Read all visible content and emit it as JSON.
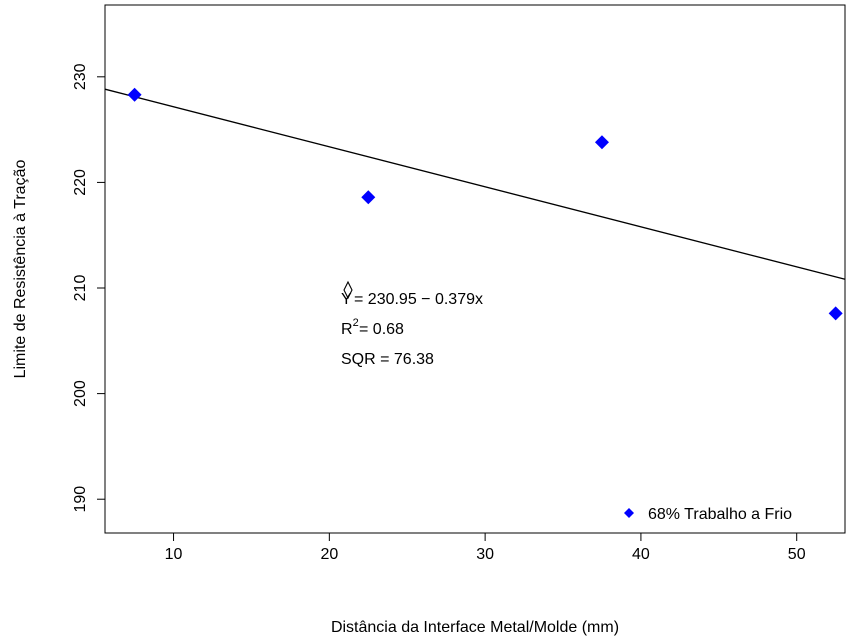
{
  "chart_data": {
    "type": "scatter",
    "title": "",
    "xlabel": "Distância da Interface Metal/Molde (mm)",
    "ylabel": "Limite de Resistência à Tração",
    "xlim": [
      5.6,
      53.1
    ],
    "ylim": [
      186.8,
      236.8
    ],
    "xticks": [
      10,
      20,
      30,
      40,
      50
    ],
    "yticks": [
      190,
      200,
      210,
      220,
      230
    ],
    "grid": false,
    "series": [
      {
        "name": "68% Trabalho a Frio",
        "color": "#0000ff",
        "marker": "diamond",
        "x": [
          7.5,
          22.5,
          37.5,
          52.5
        ],
        "y": [
          228.3,
          218.6,
          223.8,
          207.6
        ]
      }
    ],
    "fit_line": {
      "intercept": 230.95,
      "slope": -0.379,
      "color": "#000000"
    },
    "annotations": {
      "equation_rhs": "= 230.95 − 0.379x",
      "r2_rhs": "= 0.68",
      "sqr": "SQR = 76.38"
    },
    "legend_position": "bottom-right"
  }
}
